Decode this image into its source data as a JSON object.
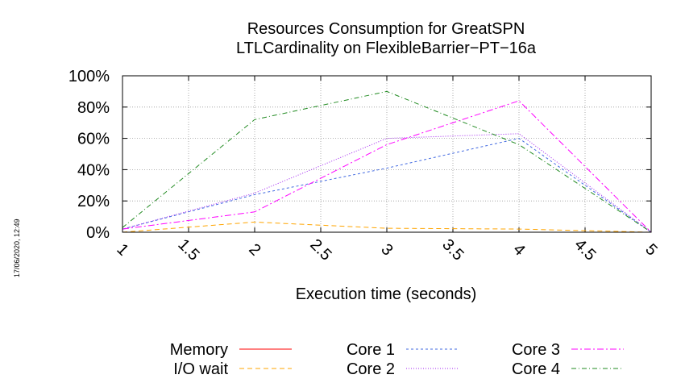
{
  "chart_data": {
    "type": "line",
    "title": [
      "Resources Consumption for GreatSPN",
      "LTLCardinality on FlexibleBarrier−PT−16a"
    ],
    "xlabel": "Execution time (seconds)",
    "ylabel": "",
    "xlim": [
      1,
      5
    ],
    "ylim": [
      0,
      100
    ],
    "x_ticks": [
      1,
      1.5,
      2,
      2.5,
      3,
      3.5,
      4,
      4.5,
      5
    ],
    "x_tick_labels": [
      "1",
      "1.5",
      "2",
      "2.5",
      "3",
      "3.5",
      "4",
      "4.5",
      "5"
    ],
    "y_ticks": [
      0,
      20,
      40,
      60,
      80,
      100
    ],
    "y_tick_labels": [
      "0%",
      "20%",
      "40%",
      "60%",
      "80%",
      "100%"
    ],
    "grid": true,
    "legend_position": "bottom",
    "series": [
      {
        "name": "Memory",
        "color": "#ff0000",
        "dash": "solid",
        "x": [
          1,
          2,
          3,
          4,
          5
        ],
        "values": [
          0,
          0,
          0,
          0,
          0
        ]
      },
      {
        "name": "I/O wait",
        "color": "#ffa500",
        "dash": "6,4",
        "x": [
          1,
          2,
          3,
          4,
          5
        ],
        "values": [
          0,
          6.5,
          2.5,
          2,
          0
        ]
      },
      {
        "name": "Core 1",
        "color": "#4169e1",
        "dash": "3,3",
        "x": [
          1,
          2,
          3,
          4,
          5
        ],
        "values": [
          2,
          24,
          41,
          60,
          0
        ]
      },
      {
        "name": "Core 2",
        "color": "#a020f0",
        "dash": "1,2",
        "x": [
          1,
          2,
          3,
          4,
          5
        ],
        "values": [
          2,
          25,
          60,
          63,
          0
        ]
      },
      {
        "name": "Core 3",
        "color": "#ff00ff",
        "dash": "8,3,2,3",
        "x": [
          1,
          2,
          3,
          4,
          5
        ],
        "values": [
          2,
          13,
          56,
          84,
          0
        ]
      },
      {
        "name": "Core 4",
        "color": "#228b22",
        "dash": "6,3,1,3",
        "x": [
          1,
          2,
          3,
          4,
          5
        ],
        "values": [
          3,
          72,
          90,
          56,
          0
        ]
      }
    ]
  },
  "timestamp": "17/06/2020, 12:49"
}
